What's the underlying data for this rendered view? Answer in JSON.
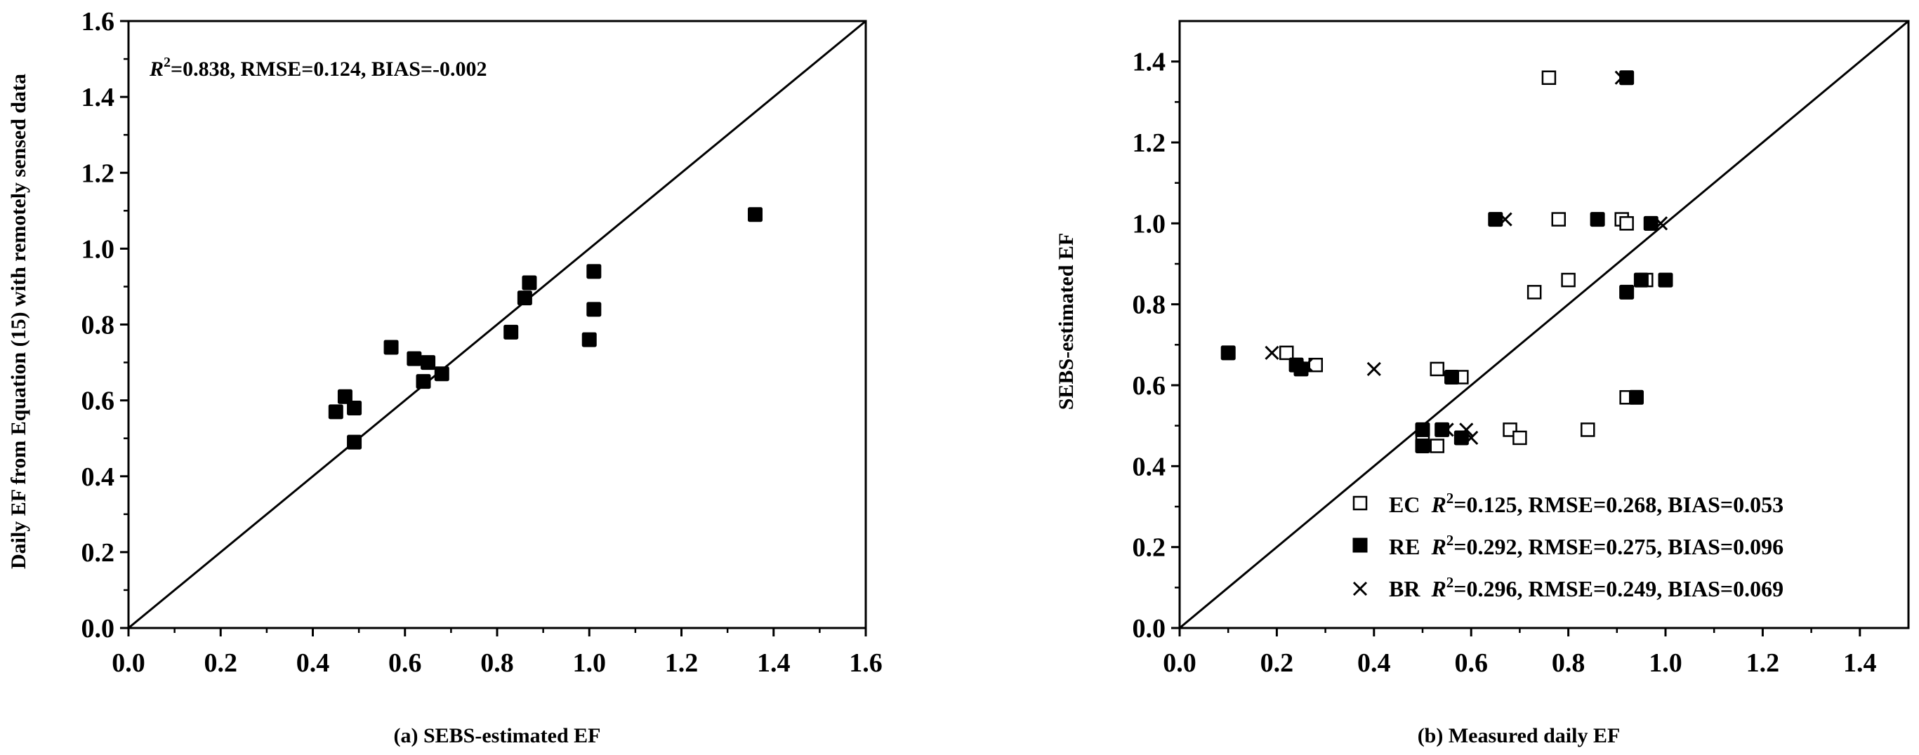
{
  "chart_data": [
    {
      "type": "scatter",
      "title": "",
      "xlabel": "(a) SEBS-estimated EF",
      "ylabel": "Daily EF from Equation (15) with remotely sensed data",
      "xlim": [
        0.0,
        1.6
      ],
      "ylim": [
        0.0,
        1.6
      ],
      "xticks": [
        "0.0",
        "0.2",
        "0.4",
        "0.6",
        "0.8",
        "1.0",
        "1.2",
        "1.4",
        "1.6"
      ],
      "yticks": [
        "0.0",
        "0.2",
        "0.4",
        "0.6",
        "0.8",
        "1.0",
        "1.2",
        "1.4",
        "1.6"
      ],
      "one_to_one_line": true,
      "grid": false,
      "annotation": {
        "r2_prefix": "R",
        "sup": "2",
        "rest": "=0.838, RMSE=0.124, BIAS=-0.002"
      },
      "series": [
        {
          "marker": "filled-square",
          "points": [
            [
              0.45,
              0.57
            ],
            [
              0.47,
              0.61
            ],
            [
              0.49,
              0.58
            ],
            [
              0.49,
              0.49
            ],
            [
              0.57,
              0.74
            ],
            [
              0.62,
              0.71
            ],
            [
              0.64,
              0.65
            ],
            [
              0.65,
              0.7
            ],
            [
              0.68,
              0.67
            ],
            [
              0.83,
              0.78
            ],
            [
              0.86,
              0.87
            ],
            [
              0.87,
              0.91
            ],
            [
              1.0,
              0.76
            ],
            [
              1.01,
              0.84
            ],
            [
              1.01,
              0.94
            ],
            [
              1.36,
              1.09
            ]
          ]
        }
      ]
    },
    {
      "type": "scatter",
      "title": "",
      "xlabel": "(b) Measured daily EF",
      "ylabel": "SEBS-estimated EF",
      "xlim": [
        0.0,
        1.5
      ],
      "ylim": [
        0.0,
        1.5
      ],
      "xticks": [
        "0.0",
        "0.2",
        "0.4",
        "0.6",
        "0.8",
        "1.0",
        "1.2",
        "1.4"
      ],
      "yticks": [
        "0.0",
        "0.2",
        "0.4",
        "0.6",
        "0.8",
        "1.0",
        "1.2",
        "1.4"
      ],
      "one_to_one_line": true,
      "grid": false,
      "legend_position": "bottom-right",
      "series": [
        {
          "name": "EC",
          "marker": "open-square",
          "stats": {
            "r2_prefix": "R",
            "sup": "2",
            "rest": "=0.125, RMSE=0.268, BIAS=0.053"
          },
          "points": [
            [
              0.76,
              1.36
            ],
            [
              0.78,
              1.01
            ],
            [
              0.91,
              1.01
            ],
            [
              0.92,
              1.0
            ],
            [
              0.73,
              0.83
            ],
            [
              0.8,
              0.86
            ],
            [
              0.96,
              0.86
            ],
            [
              0.22,
              0.68
            ],
            [
              0.28,
              0.65
            ],
            [
              0.53,
              0.64
            ],
            [
              0.58,
              0.62
            ],
            [
              0.92,
              0.57
            ],
            [
              0.68,
              0.49
            ],
            [
              0.84,
              0.49
            ],
            [
              0.7,
              0.47
            ],
            [
              0.53,
              0.45
            ],
            [
              0.5,
              0.48
            ]
          ]
        },
        {
          "name": "RE",
          "marker": "filled-square",
          "stats": {
            "r2_prefix": "R",
            "sup": "2",
            "rest": "=0.292, RMSE=0.275, BIAS=0.096"
          },
          "points": [
            [
              0.92,
              1.36
            ],
            [
              0.65,
              1.01
            ],
            [
              0.86,
              1.01
            ],
            [
              0.97,
              1.0
            ],
            [
              0.95,
              0.86
            ],
            [
              1.0,
              0.86
            ],
            [
              0.92,
              0.83
            ],
            [
              0.1,
              0.68
            ],
            [
              0.24,
              0.65
            ],
            [
              0.25,
              0.64
            ],
            [
              0.56,
              0.62
            ],
            [
              0.94,
              0.57
            ],
            [
              0.5,
              0.49
            ],
            [
              0.54,
              0.49
            ],
            [
              0.5,
              0.45
            ],
            [
              0.58,
              0.47
            ]
          ]
        },
        {
          "name": "BR",
          "marker": "cross",
          "stats": {
            "r2_prefix": "R",
            "sup": "2",
            "rest": "=0.296, RMSE=0.249, BIAS=0.069"
          },
          "points": [
            [
              0.91,
              1.36
            ],
            [
              0.67,
              1.01
            ],
            [
              0.99,
              1.0
            ],
            [
              0.92,
              0.83
            ],
            [
              0.19,
              0.68
            ],
            [
              0.26,
              0.65
            ],
            [
              0.4,
              0.64
            ],
            [
              0.59,
              0.49
            ],
            [
              0.55,
              0.49
            ],
            [
              0.6,
              0.47
            ]
          ]
        }
      ]
    }
  ]
}
